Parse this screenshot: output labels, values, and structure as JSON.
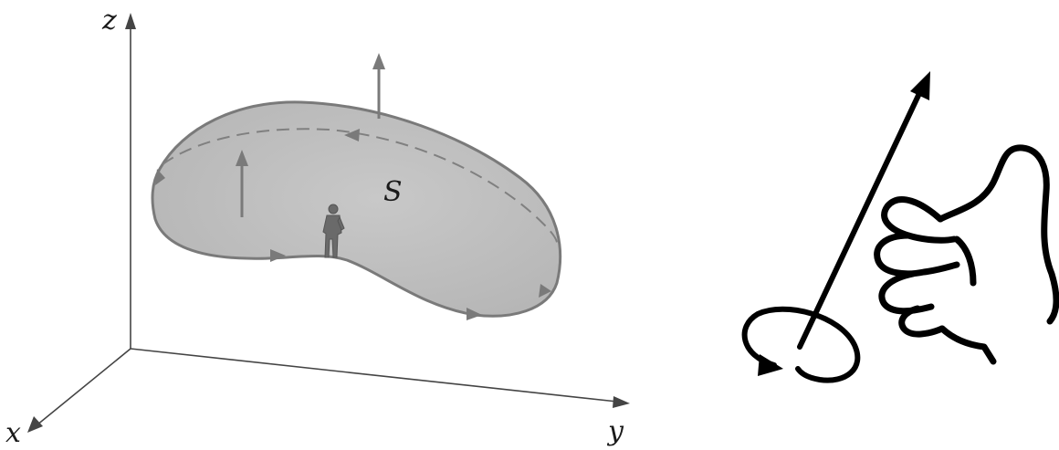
{
  "axes": {
    "x_label": "x",
    "y_label": "y",
    "z_label": "z"
  },
  "surface": {
    "label": "S",
    "fill_color": "#bdbdbd",
    "edge_color": "#7a7a7a"
  },
  "colors": {
    "axis": "#444444",
    "arrow": "#7a7a7a",
    "ink": "#000000"
  },
  "icons": [
    "walking-person-icon",
    "right-hand-thumb-icon",
    "circular-rotation-arrow-icon"
  ]
}
